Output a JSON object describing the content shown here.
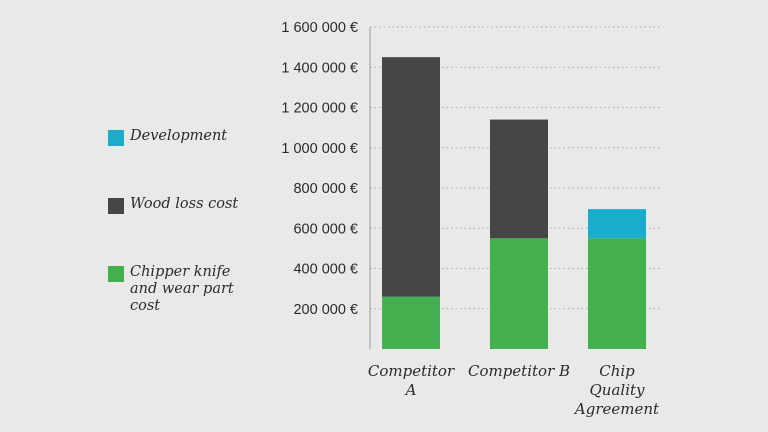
{
  "chart_data": {
    "type": "bar",
    "stacked": true,
    "categories": [
      "Competitor\nA",
      "Competitor B",
      "Chip\nQuality\nAgreement"
    ],
    "series": [
      {
        "name": "Chipper knife\nand wear part\ncost",
        "color": "#45b04f",
        "values": [
          260000,
          550000,
          550000
        ]
      },
      {
        "name": "Wood loss cost",
        "color": "#444746",
        "values": [
          1190000,
          590000,
          0
        ]
      },
      {
        "name": "Development",
        "color": "#1aaccc",
        "values": [
          0,
          0,
          145000
        ]
      }
    ],
    "ylim": [
      0,
      1600000
    ],
    "yticks": [
      {
        "value": 200000,
        "label": "200 000 €"
      },
      {
        "value": 400000,
        "label": "400 000 €"
      },
      {
        "value": 600000,
        "label": "600 000 €"
      },
      {
        "value": 800000,
        "label": "800 000 €"
      },
      {
        "value": 1000000,
        "label": "1 000 000 €"
      },
      {
        "value": 1200000,
        "label": "1 200 000 €"
      },
      {
        "value": 1400000,
        "label": "1 400 000 €"
      },
      {
        "value": 1600000,
        "label": "1 600 000 €"
      }
    ],
    "grid": "dotted-horizontal",
    "legend_position": "left"
  }
}
